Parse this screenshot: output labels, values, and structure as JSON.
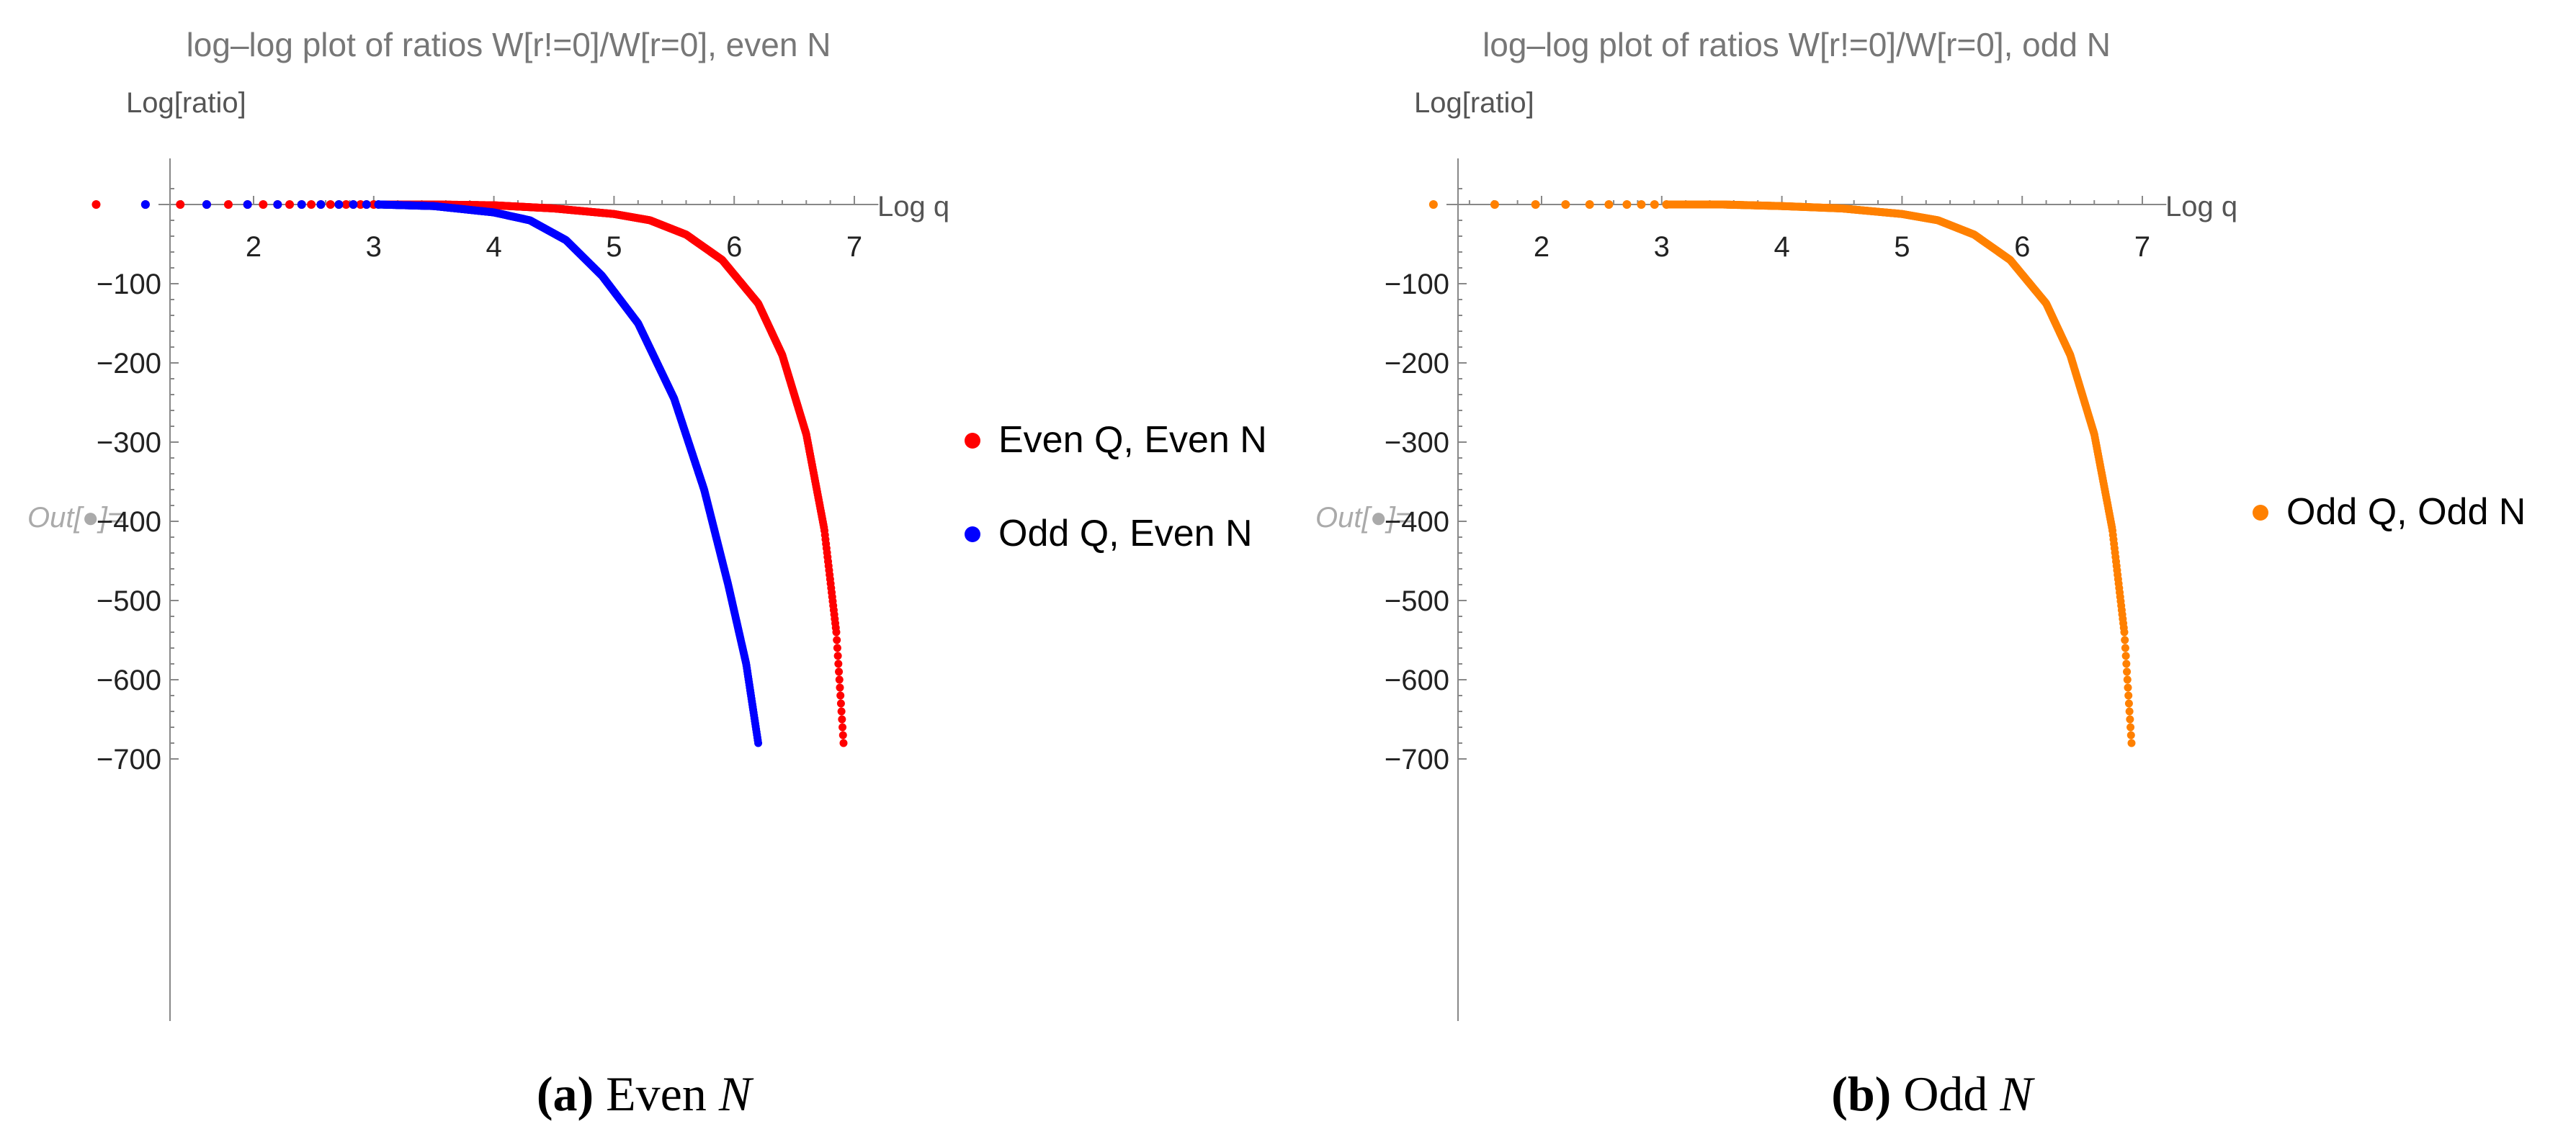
{
  "chart_data": [
    {
      "type": "scatter",
      "title": "log–log plot of ratios W[r!=0]/W[r=0], even N",
      "xlabel": "Log q",
      "ylabel": "Log[ratio]",
      "out_label": "Out[●]=",
      "xlim": [
        0.7,
        7.2
      ],
      "ylim": [
        -720,
        40
      ],
      "x_ticks": [
        "2",
        "3",
        "4",
        "5",
        "6",
        "7"
      ],
      "y_ticks": [
        "-100",
        "-200",
        "-300",
        "-400",
        "-500",
        "-600",
        "-700"
      ],
      "legend_position": "right",
      "series": [
        {
          "name": "Even Q, Even N",
          "color": "#ff0000",
          "points": [
            [
              0.69,
              0
            ],
            [
              1.1,
              0
            ],
            [
              1.39,
              0
            ],
            [
              1.61,
              0
            ],
            [
              1.79,
              0
            ],
            [
              1.95,
              0
            ],
            [
              2.08,
              0
            ],
            [
              2.2,
              0
            ],
            [
              2.3,
              0
            ],
            [
              2.4,
              0
            ],
            [
              2.48,
              0
            ],
            [
              2.56,
              0
            ],
            [
              2.64,
              0
            ],
            [
              2.71,
              0
            ],
            [
              2.77,
              0
            ],
            [
              2.83,
              0
            ],
            [
              2.89,
              0
            ],
            [
              2.94,
              0
            ],
            [
              3.0,
              0
            ],
            [
              3.5,
              0
            ],
            [
              4.0,
              -1
            ],
            [
              4.5,
              -5
            ],
            [
              5.0,
              -12
            ],
            [
              5.3,
              -20
            ],
            [
              5.6,
              -38
            ],
            [
              5.9,
              -70
            ],
            [
              6.2,
              -125
            ],
            [
              6.4,
              -190
            ],
            [
              6.6,
              -290
            ],
            [
              6.75,
              -410
            ],
            [
              6.85,
              -540
            ],
            [
              6.91,
              -680
            ]
          ]
        },
        {
          "name": "Odd Q, Even N",
          "color": "#0000ff",
          "points": [
            [
              1.1,
              0
            ],
            [
              1.61,
              0
            ],
            [
              1.95,
              0
            ],
            [
              2.2,
              0
            ],
            [
              2.4,
              0
            ],
            [
              2.56,
              0
            ],
            [
              2.71,
              0
            ],
            [
              2.83,
              0
            ],
            [
              2.94,
              0
            ],
            [
              3.04,
              0
            ],
            [
              3.5,
              -2
            ],
            [
              4.0,
              -10
            ],
            [
              4.3,
              -20
            ],
            [
              4.6,
              -45
            ],
            [
              4.9,
              -90
            ],
            [
              5.2,
              -150
            ],
            [
              5.5,
              -245
            ],
            [
              5.75,
              -360
            ],
            [
              5.95,
              -480
            ],
            [
              6.1,
              -580
            ],
            [
              6.2,
              -680
            ]
          ]
        }
      ]
    },
    {
      "type": "scatter",
      "title": "log–log plot of ratios W[r!=0]/W[r=0], odd N",
      "xlabel": "Log q",
      "ylabel": "Log[ratio]",
      "out_label": "Out[●]=",
      "xlim": [
        0.7,
        7.2
      ],
      "ylim": [
        -720,
        40
      ],
      "x_ticks": [
        "2",
        "3",
        "4",
        "5",
        "6",
        "7"
      ],
      "y_ticks": [
        "-100",
        "-200",
        "-300",
        "-400",
        "-500",
        "-600",
        "-700"
      ],
      "legend_position": "right",
      "series": [
        {
          "name": "Odd Q, Odd N",
          "color": "#ff8000",
          "points": [
            [
              1.1,
              0
            ],
            [
              1.61,
              0
            ],
            [
              1.95,
              0
            ],
            [
              2.2,
              0
            ],
            [
              2.4,
              0
            ],
            [
              2.56,
              0
            ],
            [
              2.71,
              0
            ],
            [
              2.83,
              0
            ],
            [
              2.94,
              0
            ],
            [
              3.04,
              0
            ],
            [
              3.5,
              0
            ],
            [
              4.0,
              -2
            ],
            [
              4.5,
              -5
            ],
            [
              5.0,
              -12
            ],
            [
              5.3,
              -20
            ],
            [
              5.6,
              -38
            ],
            [
              5.9,
              -70
            ],
            [
              6.2,
              -125
            ],
            [
              6.4,
              -190
            ],
            [
              6.6,
              -290
            ],
            [
              6.75,
              -410
            ],
            [
              6.85,
              -540
            ],
            [
              6.91,
              -680
            ]
          ]
        }
      ]
    }
  ],
  "captions": [
    {
      "letter": "(a)",
      "text": "Even",
      "var": "N"
    },
    {
      "letter": "(b)",
      "text": "Odd",
      "var": "N"
    }
  ]
}
